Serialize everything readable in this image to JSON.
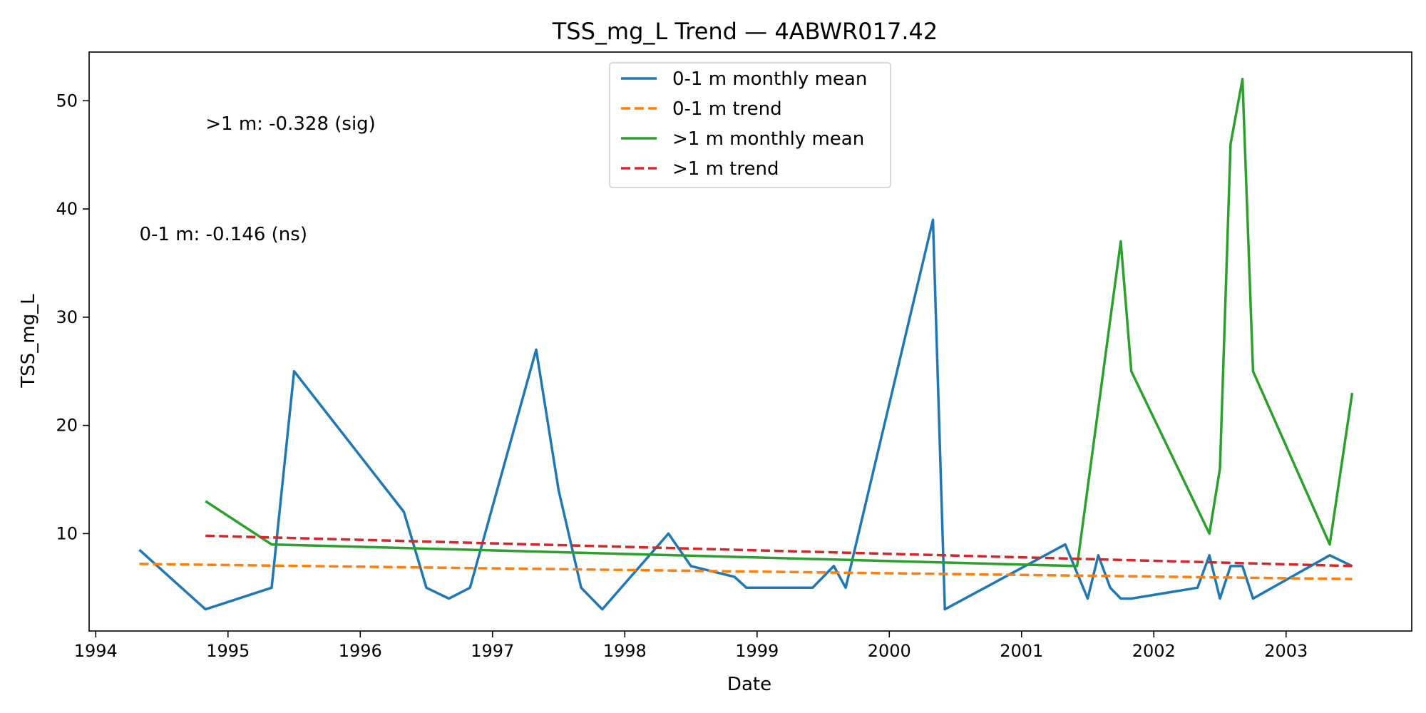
{
  "chart_data": {
    "type": "line",
    "title": "TSS_mg_L Trend — 4ABWR017.42",
    "xlabel": "Date",
    "ylabel": "TSS_mg_L",
    "xlim": [
      1993.95,
      2003.95
    ],
    "ylim": [
      1.0,
      54.5
    ],
    "x_ticks": [
      1994,
      1995,
      1996,
      1997,
      1998,
      1999,
      2000,
      2001,
      2002,
      2003
    ],
    "y_ticks": [
      10,
      20,
      30,
      40,
      50
    ],
    "grid": false,
    "legend_position": "top-center",
    "annotations": [
      {
        "text": ">1 m: -0.328 (sig)",
        "x": 1994.83,
        "y": 47.9
      },
      {
        "text": "0-1 m: -0.146 (ns)",
        "x": 1994.33,
        "y": 37.7
      }
    ],
    "series": [
      {
        "name": "0-1 m monthly mean",
        "style": "solid",
        "color": "#1f77b4",
        "points": [
          [
            1994.33,
            8.5
          ],
          [
            1994.83,
            3.0
          ],
          [
            1995.33,
            5.0
          ],
          [
            1995.5,
            25.0
          ],
          [
            1996.33,
            12.0
          ],
          [
            1996.5,
            5.0
          ],
          [
            1996.67,
            4.0
          ],
          [
            1996.83,
            5.0
          ],
          [
            1997.33,
            27.0
          ],
          [
            1997.5,
            14.0
          ],
          [
            1997.67,
            5.0
          ],
          [
            1997.83,
            3.0
          ],
          [
            1998.33,
            10.0
          ],
          [
            1998.5,
            7.0
          ],
          [
            1998.83,
            6.0
          ],
          [
            1998.92,
            5.0
          ],
          [
            1999.42,
            5.0
          ],
          [
            1999.58,
            7.0
          ],
          [
            1999.67,
            5.0
          ],
          [
            2000.33,
            39.0
          ],
          [
            2000.42,
            3.0
          ],
          [
            2001.33,
            9.0
          ],
          [
            2001.5,
            4.0
          ],
          [
            2001.58,
            8.0
          ],
          [
            2001.67,
            5.0
          ],
          [
            2001.75,
            4.0
          ],
          [
            2001.83,
            4.0
          ],
          [
            2002.33,
            5.0
          ],
          [
            2002.42,
            8.0
          ],
          [
            2002.5,
            4.0
          ],
          [
            2002.58,
            7.0
          ],
          [
            2002.67,
            7.0
          ],
          [
            2002.75,
            4.0
          ],
          [
            2003.33,
            8.0
          ],
          [
            2003.5,
            7.0
          ]
        ]
      },
      {
        "name": "0-1 m trend",
        "style": "dashed",
        "color": "#ff7f0e",
        "points": [
          [
            1994.33,
            7.2
          ],
          [
            2003.5,
            5.8
          ]
        ]
      },
      {
        "name": ">1 m monthly mean",
        "style": "solid",
        "color": "#2ca02c",
        "points": [
          [
            1994.83,
            13.0
          ],
          [
            1995.33,
            9.0
          ],
          [
            2001.42,
            7.0
          ],
          [
            2001.75,
            37.0
          ],
          [
            2001.83,
            25.0
          ],
          [
            2002.42,
            10.0
          ],
          [
            2002.5,
            16.0
          ],
          [
            2002.58,
            46.0
          ],
          [
            2002.67,
            52.0
          ],
          [
            2002.75,
            25.0
          ],
          [
            2003.33,
            9.0
          ],
          [
            2003.5,
            23.0
          ]
        ]
      },
      {
        "name": ">1 m trend",
        "style": "dashed",
        "color": "#d62728",
        "points": [
          [
            1994.83,
            9.8
          ],
          [
            2003.5,
            7.0
          ]
        ]
      }
    ]
  }
}
